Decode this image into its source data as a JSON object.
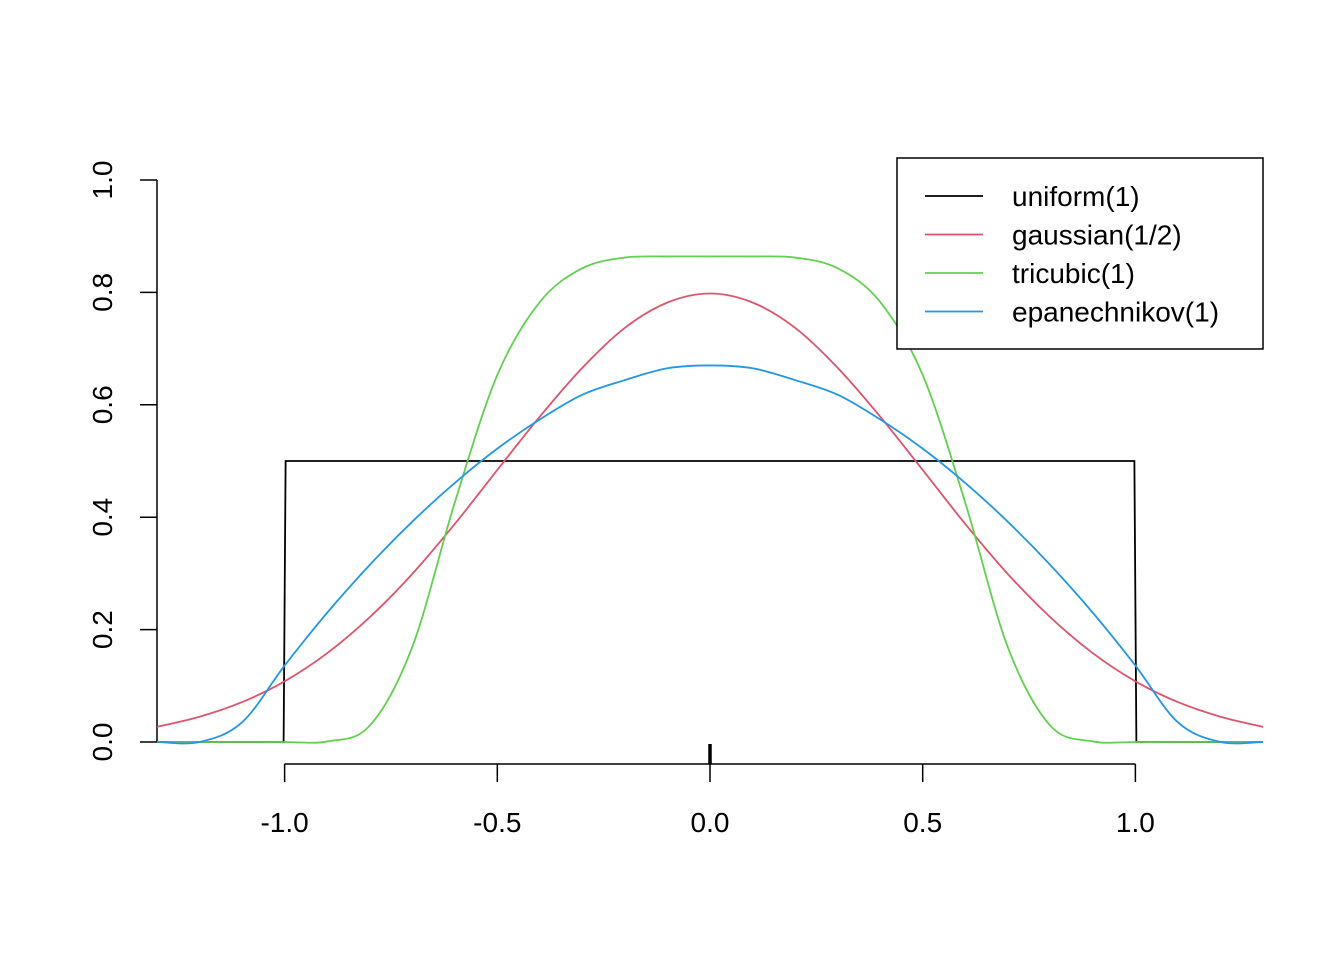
{
  "chart_data": {
    "type": "line",
    "title": "",
    "xlabel": "",
    "ylabel": "",
    "xlim": [
      -1.3,
      1.3
    ],
    "ylim": [
      0,
      1
    ],
    "x_ticks": [
      {
        "value": -1.0,
        "label": "-1.0"
      },
      {
        "value": -0.5,
        "label": "-0.5"
      },
      {
        "value": 0.0,
        "label": "0.0"
      },
      {
        "value": 0.5,
        "label": "0.5"
      },
      {
        "value": 1.0,
        "label": "1.0"
      }
    ],
    "y_ticks": [
      {
        "value": 0.0,
        "label": "0.0"
      },
      {
        "value": 0.2,
        "label": "0.2"
      },
      {
        "value": 0.4,
        "label": "0.4"
      },
      {
        "value": 0.6,
        "label": "0.6"
      },
      {
        "value": 0.8,
        "label": "0.8"
      },
      {
        "value": 1.0,
        "label": "1.0"
      }
    ],
    "grid": false,
    "legend_position": "top-right",
    "rug": [
      0
    ],
    "x": [
      -1.3,
      -1.2,
      -1.1,
      -1.0,
      -0.9,
      -0.8,
      -0.7,
      -0.6,
      -0.5,
      -0.4,
      -0.3,
      -0.2,
      -0.1,
      0.0,
      0.1,
      0.2,
      0.3,
      0.4,
      0.5,
      0.6,
      0.7,
      0.8,
      0.9,
      1.0,
      1.1,
      1.2,
      1.3
    ],
    "series": [
      {
        "name": "uniform(1)",
        "color": "#000000",
        "values": [
          0,
          0,
          0,
          0.5,
          0.5,
          0.5,
          0.5,
          0.5,
          0.5,
          0.5,
          0.5,
          0.5,
          0.5,
          0.5,
          0.5,
          0.5,
          0.5,
          0.5,
          0.5,
          0.5,
          0.5,
          0.5,
          0.5,
          0.5,
          0,
          0,
          0
        ]
      },
      {
        "name": "gaussian(1/2)",
        "color": "#DF536B",
        "values": [
          0.027,
          0.045,
          0.071,
          0.108,
          0.158,
          0.222,
          0.299,
          0.388,
          0.484,
          0.579,
          0.666,
          0.737,
          0.782,
          0.798,
          0.782,
          0.737,
          0.666,
          0.579,
          0.484,
          0.388,
          0.299,
          0.222,
          0.158,
          0.108,
          0.071,
          0.045,
          0.027
        ]
      },
      {
        "name": "tricubic(1)",
        "color": "#61D04F",
        "values": [
          0,
          0,
          0,
          0.0,
          0.001,
          0.029,
          0.169,
          0.426,
          0.653,
          0.783,
          0.843,
          0.862,
          0.864,
          0.864,
          0.864,
          0.862,
          0.843,
          0.783,
          0.653,
          0.426,
          0.169,
          0.029,
          0.001,
          0.0,
          0,
          0,
          0
        ]
      },
      {
        "name": "epanechnikov(1)",
        "color": "#2297E6",
        "values": [
          0,
          0,
          0.035,
          0.136,
          0.23,
          0.315,
          0.392,
          0.461,
          0.522,
          0.574,
          0.618,
          0.644,
          0.665,
          0.67,
          0.665,
          0.644,
          0.618,
          0.574,
          0.522,
          0.461,
          0.392,
          0.315,
          0.23,
          0.136,
          0.035,
          0,
          0
        ]
      }
    ]
  }
}
